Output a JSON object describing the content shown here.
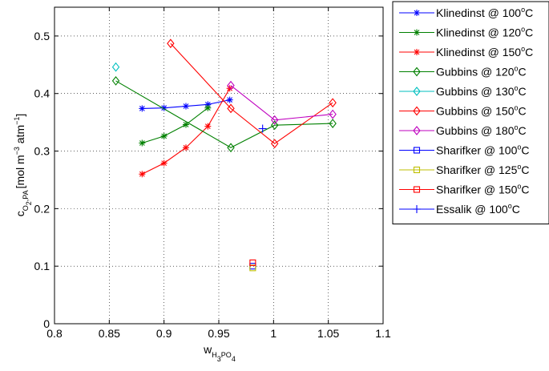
{
  "chart_data": {
    "type": "line",
    "title": "",
    "xlabel": {
      "main": "w",
      "sub1": "H",
      "sub2": "3",
      "sub3": "PO",
      "sub4": "4"
    },
    "ylabel": {
      "main": "c",
      "sub1": "O",
      "sub2": "2",
      "sub3": ",PA",
      "unit": "[mol m",
      "exp1": "−3",
      "mid": " atm",
      "exp2": "−1",
      "end": "]"
    },
    "xlim": [
      0.8,
      1.1
    ],
    "ylim": [
      0,
      0.55
    ],
    "xticks": [
      "0.8",
      "0.85",
      "0.9",
      "0.95",
      "1",
      "1.05",
      "1.1"
    ],
    "yticks": [
      "0",
      "0.1",
      "0.2",
      "0.3",
      "0.4",
      "0.5"
    ],
    "grid": true,
    "legend_position": "outside-right",
    "series": [
      {
        "name": "Klinedinst @ 100",
        "unit": "C",
        "color": "#0000ff",
        "marker": "asterisk",
        "x": [
          0.88,
          0.9,
          0.92,
          0.94,
          0.96
        ],
        "y": [
          0.374,
          0.375,
          0.378,
          0.381,
          0.389
        ]
      },
      {
        "name": "Klinedinst @ 120",
        "unit": "C",
        "color": "#008000",
        "marker": "asterisk",
        "x": [
          0.88,
          0.9,
          0.92,
          0.94
        ],
        "y": [
          0.314,
          0.326,
          0.346,
          0.375
        ]
      },
      {
        "name": "Klinedinst @ 150",
        "unit": "C",
        "color": "#ff0000",
        "marker": "asterisk",
        "x": [
          0.88,
          0.9,
          0.92,
          0.94,
          0.96
        ],
        "y": [
          0.26,
          0.279,
          0.306,
          0.343,
          0.409
        ]
      },
      {
        "name": "Gubbins @ 120",
        "unit": "C",
        "color": "#008000",
        "marker": "diamond",
        "x": [
          0.856,
          0.961,
          1.001,
          1.054
        ],
        "y": [
          0.422,
          0.306,
          0.345,
          0.348
        ]
      },
      {
        "name": "Gubbins @ 130",
        "unit": "C",
        "color": "#00bfbf",
        "marker": "diamond",
        "x": [
          0.856
        ],
        "y": [
          0.446
        ]
      },
      {
        "name": "Gubbins @ 150",
        "unit": "C",
        "color": "#ff0000",
        "marker": "diamond",
        "x": [
          0.906,
          0.961,
          1.001,
          1.054
        ],
        "y": [
          0.487,
          0.374,
          0.313,
          0.384
        ]
      },
      {
        "name": "Gubbins @ 180",
        "unit": "C",
        "color": "#bf00bf",
        "marker": "diamond",
        "x": [
          0.961,
          1.001,
          1.054
        ],
        "y": [
          0.414,
          0.354,
          0.364
        ]
      },
      {
        "name": "Sharifker @ 100",
        "unit": "C",
        "color": "#0000ff",
        "marker": "square",
        "x": [
          0.981
        ],
        "y": [
          0.1
        ]
      },
      {
        "name": "Sharifker @ 125",
        "unit": "C",
        "color": "#bfbf00",
        "marker": "square",
        "x": [
          0.981
        ],
        "y": [
          0.097
        ]
      },
      {
        "name": "Sharifker @ 150",
        "unit": "C",
        "color": "#ff0000",
        "marker": "square",
        "x": [
          0.981
        ],
        "y": [
          0.106
        ]
      },
      {
        "name": "Essalik @ 100",
        "unit": "C",
        "color": "#0000ff",
        "marker": "plus",
        "x": [
          0.99
        ],
        "y": [
          0.339
        ]
      }
    ],
    "degree_symbol": "o"
  }
}
